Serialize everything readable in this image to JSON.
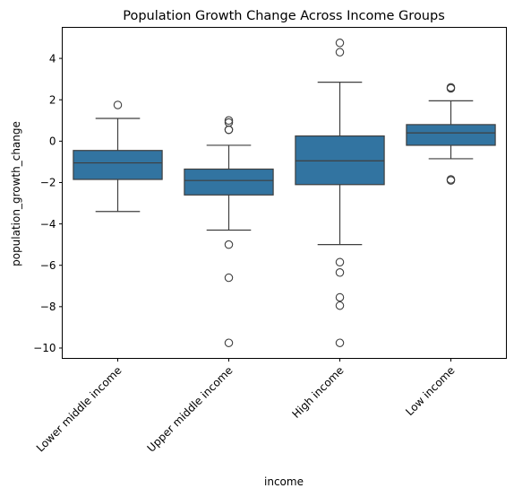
{
  "chart_data": {
    "type": "box",
    "title": "Population Growth Change Across Income Groups",
    "xlabel": "income",
    "ylabel": "population_growth_change",
    "ylim": [
      -10.5,
      5.5
    ],
    "yticks": [
      4,
      2,
      0,
      -2,
      -4,
      -6,
      -8,
      -10
    ],
    "ytick_labels": [
      "4",
      "2",
      "0",
      "−2",
      "−4",
      "−6",
      "−8",
      "−10"
    ],
    "grid": false,
    "box_color": "#3274a1",
    "categories": [
      "Lower middle income",
      "Upper middle income",
      "High income",
      "Low income"
    ],
    "boxes": [
      {
        "category": "Lower middle income",
        "whisker_low": -3.4,
        "q1": -1.85,
        "median": -1.05,
        "q3": -0.45,
        "whisker_high": 1.1,
        "outliers": [
          1.75
        ]
      },
      {
        "category": "Upper middle income",
        "whisker_low": -4.3,
        "q1": -2.6,
        "median": -1.9,
        "q3": -1.35,
        "whisker_high": -0.2,
        "outliers": [
          0.55,
          0.55,
          0.9,
          1.0,
          -5.0,
          -6.6,
          -9.75
        ]
      },
      {
        "category": "High income",
        "whisker_low": -5.0,
        "q1": -2.1,
        "median": -0.95,
        "q3": 0.25,
        "whisker_high": 2.85,
        "outliers": [
          4.75,
          4.3,
          -5.85,
          -6.35,
          -7.55,
          -7.95,
          -9.75
        ]
      },
      {
        "category": "Low income",
        "whisker_low": -0.85,
        "q1": -0.2,
        "median": 0.4,
        "q3": 0.8,
        "whisker_high": 1.95,
        "outliers": [
          2.55,
          2.6,
          -1.85,
          -1.9
        ]
      }
    ]
  }
}
